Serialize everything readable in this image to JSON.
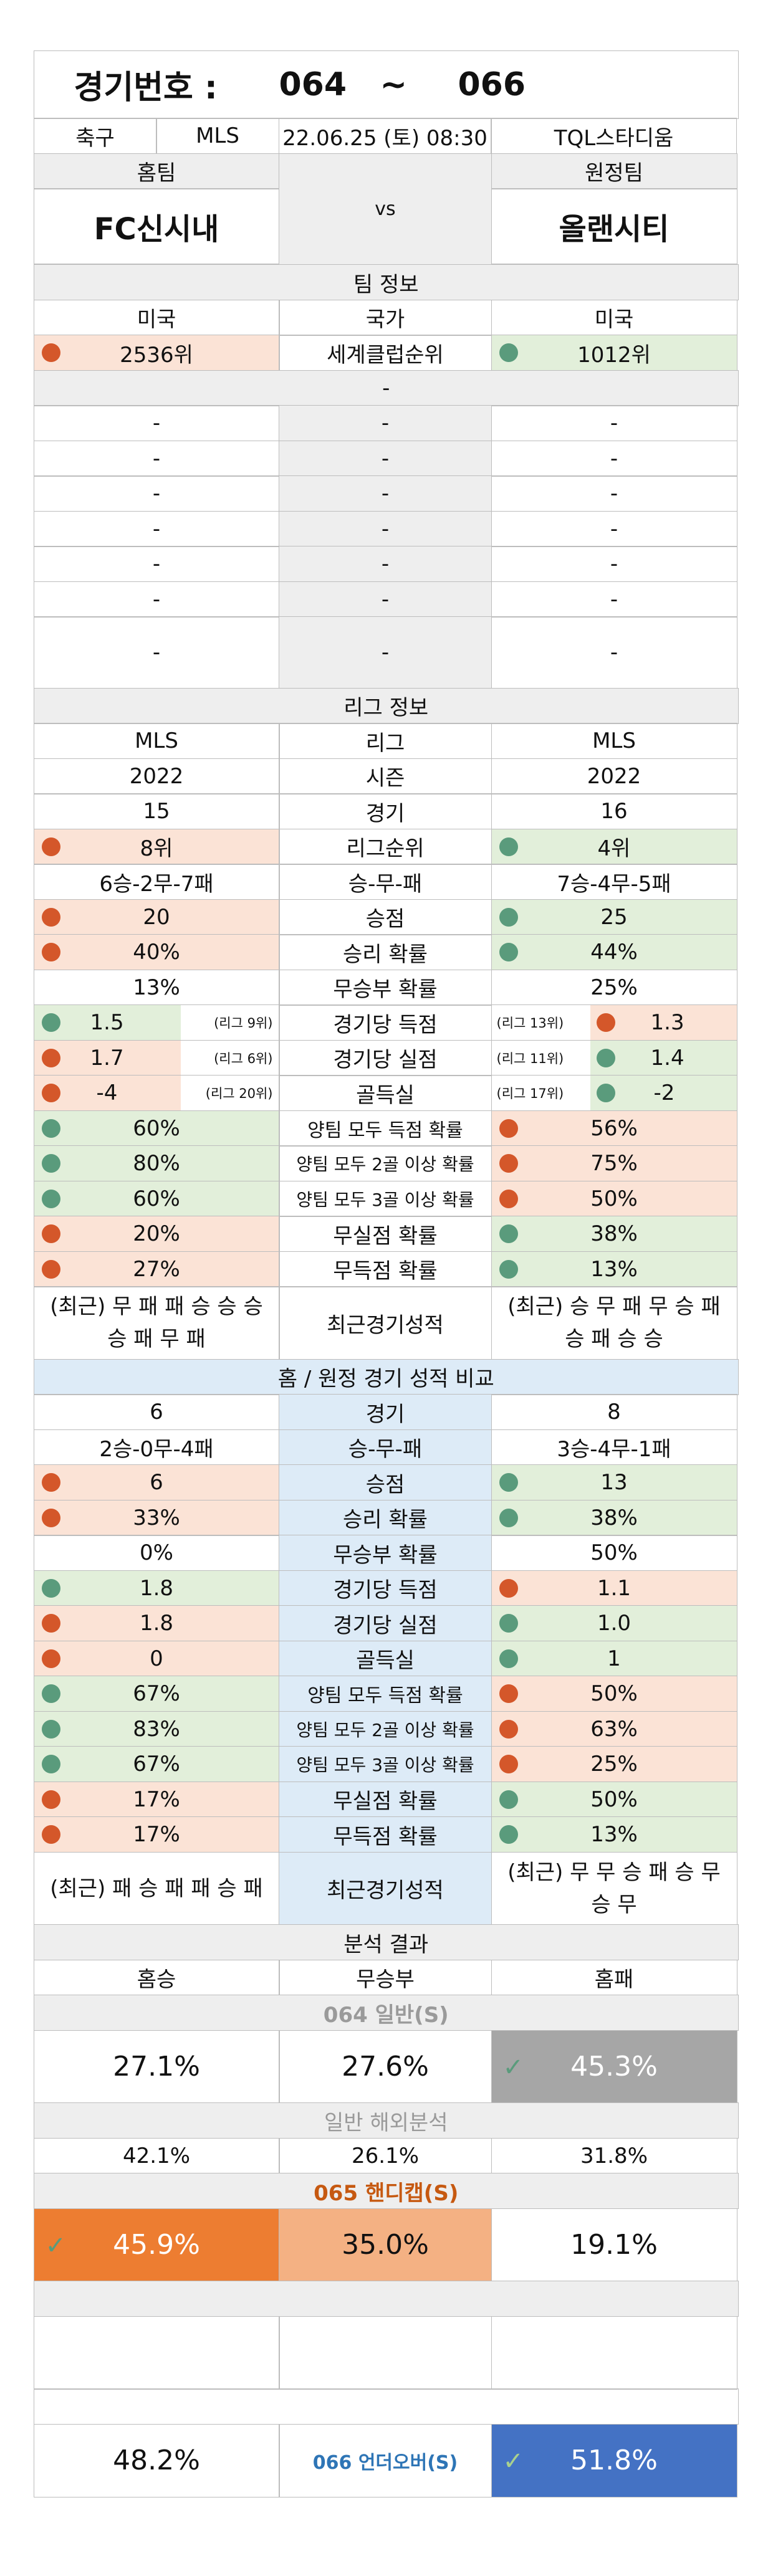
{
  "header": {
    "label": "경기번호 :",
    "from": "064",
    "tilde": "~",
    "to": "066"
  },
  "match": {
    "sport": "축구",
    "league": "MLS",
    "datetime": "22.06.25 (토) 08:30",
    "stadium": "TQL스타디움",
    "home_label": "홈팀",
    "away_label": "원정팀",
    "vs": "vs",
    "home_team": "FC신시내",
    "away_team": "올랜시티"
  },
  "team_info": {
    "title": "팀 정보",
    "rows": [
      {
        "home": "미국",
        "label": "국가",
        "away": "미국"
      },
      {
        "home": "2536위",
        "label": "세계클럽순위",
        "away": "1012위"
      }
    ],
    "blank_row": "-",
    "dash_rows": [
      {
        "home": "-",
        "label": "-",
        "away": "-"
      },
      {
        "home": "-",
        "label": "-",
        "away": "-"
      },
      {
        "home": "-",
        "label": "-",
        "away": "-"
      },
      {
        "home": "-",
        "label": "-",
        "away": "-"
      },
      {
        "home": "-",
        "label": "-",
        "away": "-"
      },
      {
        "home": "-",
        "label": "-",
        "away": "-"
      },
      {
        "home": "-",
        "label": "-",
        "away": "-"
      }
    ]
  },
  "league_info": {
    "title": "리그 정보",
    "league": {
      "home": "MLS",
      "label": "리그",
      "away": "MLS"
    },
    "season": {
      "home": "2022",
      "label": "시즌",
      "away": "2022"
    },
    "games": {
      "home": "15",
      "label": "경기",
      "away": "16"
    },
    "rank": {
      "home": "8위",
      "label": "리그순위",
      "away": "4위"
    },
    "wdl": {
      "home": "6승-2무-7패",
      "label": "승-무-패",
      "away": "7승-4무-5패"
    },
    "points": {
      "home": "20",
      "label": "승점",
      "away": "25"
    },
    "win_rate": {
      "home": "40%",
      "label": "승리 확률",
      "away": "44%"
    },
    "draw_rate": {
      "home": "13%",
      "label": "무승부 확률",
      "away": "25%"
    },
    "gf": {
      "home": "1.5",
      "home_note": "(리그 9위)",
      "label": "경기당 득점",
      "away_note": "(리그 13위)",
      "away": "1.3"
    },
    "ga": {
      "home": "1.7",
      "home_note": "(리그 6위)",
      "label": "경기당 실점",
      "away_note": "(리그 11위)",
      "away": "1.4"
    },
    "gd": {
      "home": "-4",
      "home_note": "(리그 20위)",
      "label": "골득실",
      "away_note": "(리그 17위)",
      "away": "-2"
    },
    "btts": {
      "home": "60%",
      "label": "양팀 모두 득점 확률",
      "away": "56%"
    },
    "btts2": {
      "home": "80%",
      "label": "양팀 모두 2골 이상 확률",
      "away": "75%"
    },
    "btts3": {
      "home": "60%",
      "label": "양팀 모두 3골 이상 확률",
      "away": "50%"
    },
    "clean": {
      "home": "20%",
      "label": "무실점 확률",
      "away": "38%"
    },
    "noscore": {
      "home": "27%",
      "label": "무득점 확률",
      "away": "13%"
    },
    "recent": {
      "home": "(최근) 무 패 패 승 승 승 승 패 무 패",
      "label": "최근경기성적",
      "away": "(최근) 승 무 패 무 승 패 승 패 승 승"
    }
  },
  "homeaway": {
    "title": "홈 / 원정 경기 성적 비교",
    "games": {
      "home": "6",
      "label": "경기",
      "away": "8"
    },
    "wdl": {
      "home": "2승-0무-4패",
      "label": "승-무-패",
      "away": "3승-4무-1패"
    },
    "points": {
      "home": "6",
      "label": "승점",
      "away": "13"
    },
    "win_rate": {
      "home": "33%",
      "label": "승리 확률",
      "away": "38%"
    },
    "draw_rate": {
      "home": "0%",
      "label": "무승부 확률",
      "away": "50%"
    },
    "gf": {
      "home": "1.8",
      "label": "경기당 득점",
      "away": "1.1"
    },
    "ga": {
      "home": "1.8",
      "label": "경기당 실점",
      "away": "1.0"
    },
    "gd": {
      "home": "0",
      "label": "골득실",
      "away": "1"
    },
    "btts": {
      "home": "67%",
      "label": "양팀 모두 득점 확률",
      "away": "50%"
    },
    "btts2": {
      "home": "83%",
      "label": "양팀 모두 2골 이상 확률",
      "away": "63%"
    },
    "btts3": {
      "home": "67%",
      "label": "양팀 모두 3골 이상 확률",
      "away": "25%"
    },
    "clean": {
      "home": "17%",
      "label": "무실점 확률",
      "away": "50%"
    },
    "noscore": {
      "home": "17%",
      "label": "무득점 확률",
      "away": "13%"
    },
    "recent": {
      "home": "(최근) 패 승 패 패 승 패",
      "label": "최근경기성적",
      "away": "(최근) 무 무 승 패 승 무 승 무"
    }
  },
  "analysis": {
    "title": "분석 결과",
    "col_home": "홈승",
    "col_draw": "무승부",
    "col_away": "홈패",
    "general_title": "064 일반(S)",
    "general": {
      "home": "27.1%",
      "draw": "27.6%",
      "away": "45.3%"
    },
    "overseas_title": "일반 해외분석",
    "overseas": {
      "home": "42.1%",
      "draw": "26.1%",
      "away": "31.8%"
    },
    "handicap_title": "065 핸디캡(S)",
    "handicap": {
      "home": "45.9%",
      "draw": "35.0%",
      "away": "19.1%"
    },
    "underover_label": "066 언더오버(S)",
    "underover": {
      "under": "48.2%",
      "over": "51.8%"
    }
  },
  "colors": {
    "pink": "#fbe3d6",
    "green": "#e2efda",
    "blue": "#ddebf7",
    "red_dot": "#d4572a",
    "green_dot": "#5a9b7c",
    "grey_pick": "#a6a6a6",
    "orange_pick": "#ed7d31",
    "orange_light": "#f4b183",
    "blue_pick": "#4472c4",
    "handicap_title": "#c65911",
    "underover_text": "#2e75b6"
  }
}
